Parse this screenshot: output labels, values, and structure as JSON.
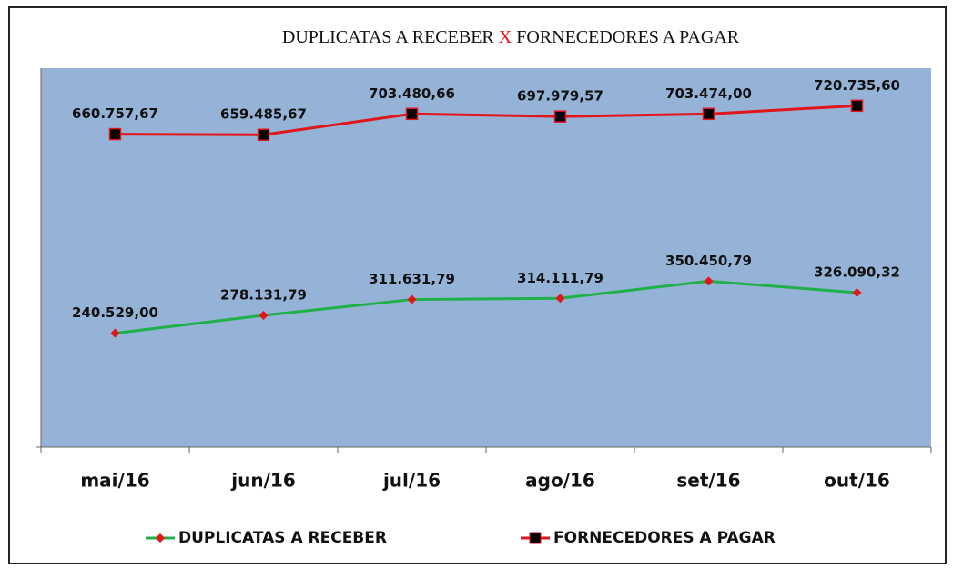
{
  "chart_data": {
    "type": "line",
    "title": [
      "DUPLICATAS A RECEBER",
      "X",
      "FORNECEDORES A PAGAR"
    ],
    "categories": [
      "mai/16",
      "jun/16",
      "jul/16",
      "ago/16",
      "set/16",
      "out/16"
    ],
    "series": [
      {
        "name": "DUPLICATAS A RECEBER",
        "color": "#1fb04a",
        "marker_color": "#e0161b",
        "marker": "diamond",
        "values": [
          240529.0,
          278131.79,
          311631.79,
          314111.79,
          350450.79,
          326090.32
        ],
        "value_labels": [
          "240.529,00",
          "278.131,79",
          "311.631,79",
          "314.111,79",
          "350.450,79",
          "326.090,32"
        ]
      },
      {
        "name": "FORNECEDORES A PAGAR",
        "color": "#e0161b",
        "marker_color": "#000000",
        "marker": "square",
        "values": [
          660757.67,
          659485.67,
          703480.66,
          697979.57,
          703474.0,
          720735.6
        ],
        "value_labels": [
          "660.757,67",
          "659.485,67",
          "703.480,66",
          "697.979,57",
          "703.474,00",
          "720.735,60"
        ]
      }
    ],
    "ylim": [
      0,
      800000
    ],
    "plot_background": "#95b3d7",
    "legend": "bottom"
  }
}
